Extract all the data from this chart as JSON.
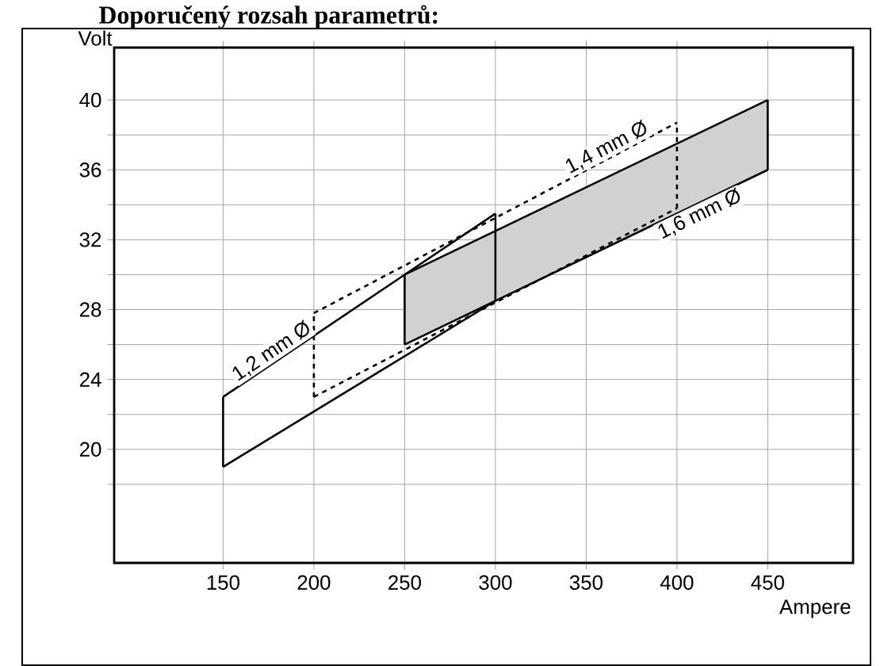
{
  "chart_data": {
    "type": "line",
    "title": "Doporučený rozsah parametrů:",
    "xlabel": "Ampere",
    "ylabel": "Volt",
    "xlim": [
      90,
      497
    ],
    "ylim": [
      13.5,
      43
    ],
    "xticks": [
      150,
      200,
      250,
      300,
      350,
      400,
      450
    ],
    "yticks": [
      {
        "value": 18,
        "label": null
      },
      20,
      {
        "value": 22,
        "label": null
      },
      24,
      {
        "value": 26,
        "label": null
      },
      28,
      {
        "value": 30,
        "label": null
      },
      32,
      {
        "value": 34,
        "label": null
      },
      36,
      {
        "value": 38,
        "label": null
      },
      40
    ],
    "grid": true,
    "series": [
      {
        "name": "1,6 mm Ø",
        "color": "#000000",
        "line_style": "solid",
        "x": [
          250,
          450
        ],
        "values": [
          30,
          40
        ],
        "lower": [
          26,
          36
        ],
        "upper": [
          30,
          40
        ]
      },
      {
        "color": "#000000",
        "line_style": "solid",
        "x": [
          250,
          450
        ],
        "values": [
          26,
          36
        ],
        "errors": [
          [
            26,
            30
          ],
          [
            36,
            40
          ]
        ]
      },
      {
        "name": "1,2 mm Ø",
        "color": "#000000",
        "line_style": "solid",
        "x": [
          150,
          300
        ],
        "values": [
          23,
          33.5
        ]
      },
      {
        "color": "#000000",
        "line_style": "solid",
        "x": [
          150,
          300
        ],
        "values": [
          19,
          28.5
        ],
        "errors": [
          [
            19,
            23
          ],
          [
            28.5,
            33.5
          ]
        ]
      },
      {
        "name": "1,4 mm Ø",
        "color": "#000000",
        "line_style": "dashed",
        "x": [
          200,
          400
        ],
        "values": [
          27.8,
          38.7
        ]
      },
      {
        "color": "#000000",
        "line_style": "dashed",
        "x": [
          200,
          400
        ],
        "values": [
          23,
          33.8
        ],
        "errors": [
          [
            23,
            27.8
          ],
          [
            33.8,
            38.7
          ]
        ]
      }
    ]
  }
}
